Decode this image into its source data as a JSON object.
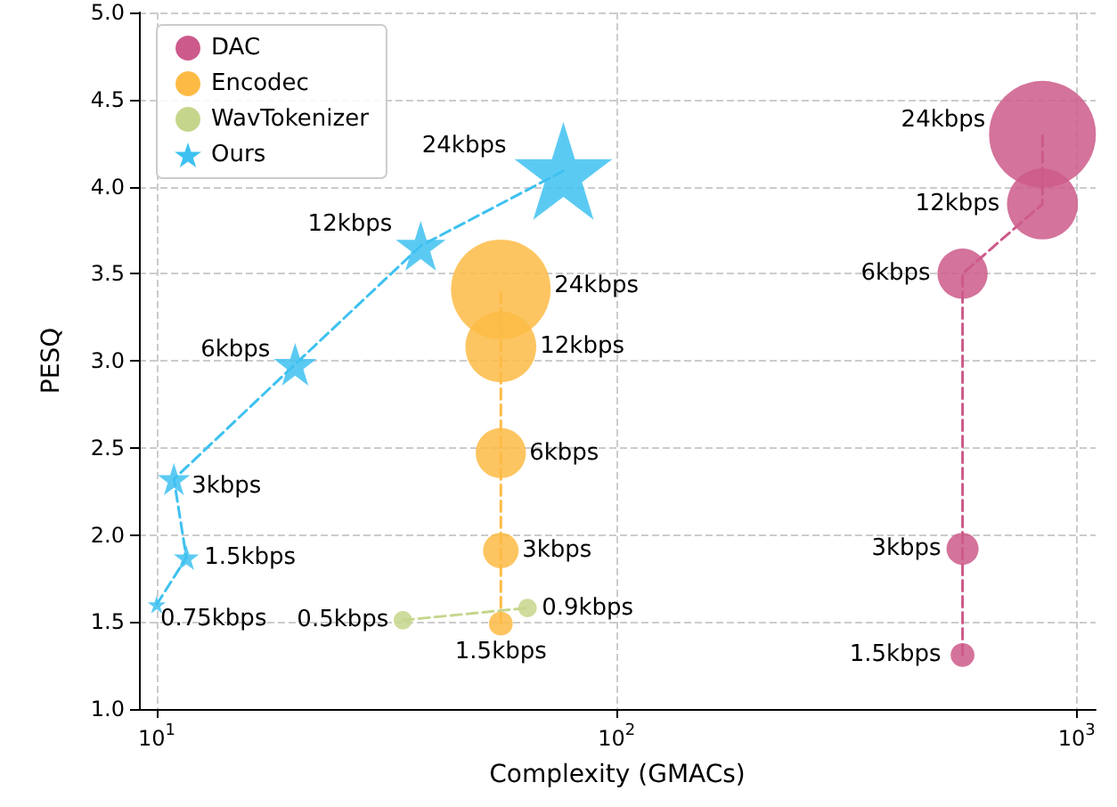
{
  "chart_data": {
    "type": "bubble",
    "xlabel": "Complexity (GMACs)",
    "ylabel": "PESQ",
    "log": "x",
    "xlim": [
      9.15,
      1100
    ],
    "xticks": [
      {
        "value": 10,
        "label": "10$^{1}$"
      },
      {
        "value": 100,
        "label": "10$^{2}$"
      },
      {
        "value": 1000,
        "label": "10$^{3}$"
      }
    ],
    "ylim": [
      1.0,
      5.0
    ],
    "yticks": [
      {
        "value": 1,
        "label": "1.0"
      },
      {
        "value": 1.5,
        "label": "1.5"
      },
      {
        "value": 2,
        "label": "2.0"
      },
      {
        "value": 2.5,
        "label": "2.5"
      },
      {
        "value": 3,
        "label": "3.0"
      },
      {
        "value": 3.5,
        "label": "3.5"
      },
      {
        "value": 4,
        "label": "4.0"
      },
      {
        "value": 4.5,
        "label": "4.5"
      },
      {
        "value": 5,
        "label": "5.0"
      }
    ],
    "grid": true,
    "legend": "top left",
    "line_style": "dashed",
    "series": [
      {
        "name": "DAC",
        "color": "#cc5a8a",
        "marker": "circle",
        "x": [
          565,
          565,
          565,
          843,
          843
        ],
        "values": [
          1.31,
          1.92,
          3.5,
          3.9,
          4.3
        ],
        "sizes": [
          0.05,
          0.09,
          0.22,
          0.44,
          1
        ]
      },
      {
        "name": "Encodec",
        "color": "#fdbb45",
        "marker": "circle",
        "x": [
          56,
          56,
          56,
          56,
          56
        ],
        "values": [
          1.49,
          1.91,
          2.47,
          3.08,
          3.41
        ],
        "sizes": [
          0.05,
          0.11,
          0.22,
          0.44,
          0.87
        ]
      },
      {
        "name": "WavTokenizer",
        "color": "#c5d68c",
        "marker": "circle",
        "x": [
          34.3,
          64
        ],
        "values": [
          1.51,
          1.58
        ],
        "sizes": [
          0.03,
          0.03
        ]
      },
      {
        "name": "Ours",
        "color": "#3ec1f0",
        "marker": "star",
        "x": [
          10,
          11.6,
          10.9,
          20,
          37.5,
          76.6
        ],
        "values": [
          1.6,
          1.87,
          2.32,
          2.98,
          3.66,
          4.09
        ],
        "sizes": [
          0.012,
          0.023,
          0.038,
          0.067,
          0.091,
          0.35
        ]
      }
    ],
    "annotations": [
      {
        "text": "1.5kbps",
        "x": 565,
        "y": 1.31
      },
      {
        "text": "3kbps",
        "x": 565,
        "y": 1.92
      },
      {
        "text": "6kbps",
        "x": 565,
        "y": 3.5
      },
      {
        "text": "12kbps",
        "x": 843,
        "y": 3.9
      },
      {
        "text": "24kbps",
        "x": 843,
        "y": 4.3
      },
      {
        "text": "1.5kbps",
        "x": 56,
        "y": 1.49
      },
      {
        "text": "3kbps",
        "x": 56,
        "y": 1.91
      },
      {
        "text": "6kbps",
        "x": 56,
        "y": 2.47
      },
      {
        "text": "12kbps",
        "x": 56,
        "y": 3.08
      },
      {
        "text": "24kbps",
        "x": 56,
        "y": 3.41
      },
      {
        "text": "0.5kbps",
        "x": 34.3,
        "y": 1.51
      },
      {
        "text": "0.9kbps",
        "x": 64,
        "y": 1.58
      },
      {
        "text": "0.75kbps",
        "x": 10,
        "y": 1.6
      },
      {
        "text": "1.5kbps",
        "x": 11.6,
        "y": 1.87
      },
      {
        "text": "3kbps",
        "x": 10.9,
        "y": 2.32
      },
      {
        "text": "6kbps",
        "x": 20,
        "y": 2.98
      },
      {
        "text": "12kbps",
        "x": 37.5,
        "y": 3.66
      },
      {
        "text": "24kbps",
        "x": 76.6,
        "y": 4.09
      }
    ]
  }
}
